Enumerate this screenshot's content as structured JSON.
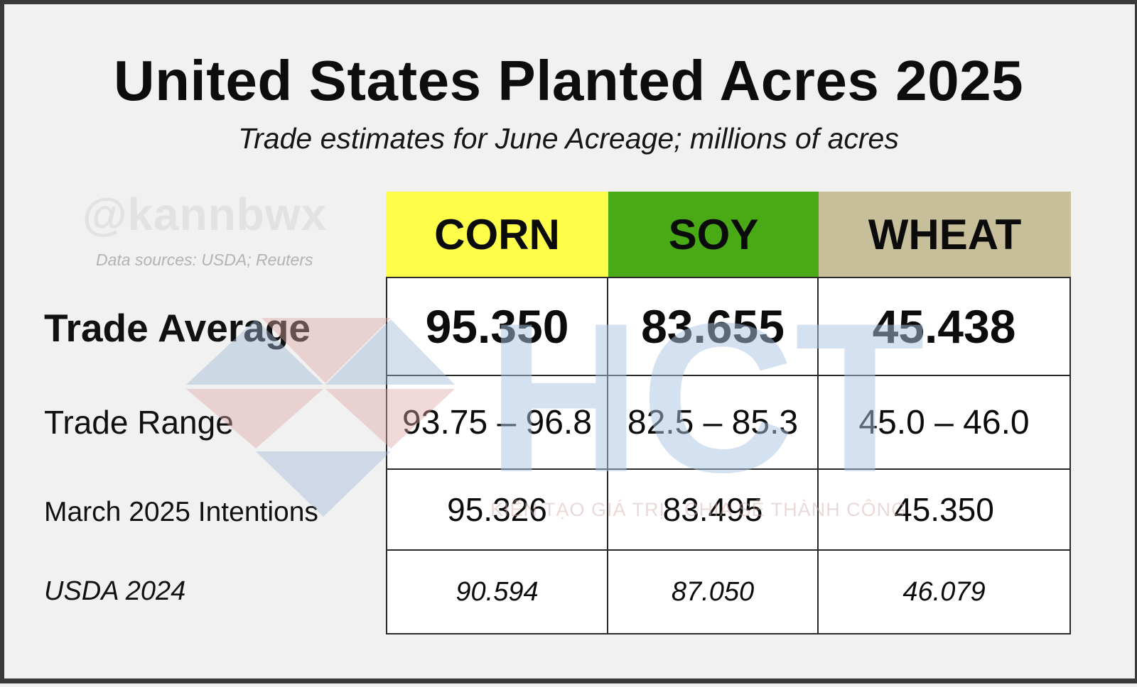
{
  "title": "United States Planted Acres 2025",
  "subtitle": "Trade estimates for June Acreage; millions of acres",
  "credit": {
    "handle": "@kannbwx",
    "sources": "Data sources: USDA; Reuters"
  },
  "watermark": {
    "brand": "HCT",
    "tagline": "KIẾN TẠO GIÁ TRỊ · CHIA SẺ THÀNH CÔNG"
  },
  "colors": {
    "corn": "#fdfd4a",
    "soy": "#4aaa16",
    "wheat": "#c6bf9a"
  },
  "chart_data": {
    "type": "table",
    "columns": [
      "CORN",
      "SOY",
      "WHEAT"
    ],
    "rows": [
      {
        "label": "Trade Average",
        "values": [
          "95.350",
          "83.655",
          "45.438"
        ]
      },
      {
        "label": "Trade Range",
        "values": [
          "93.75 – 96.8",
          "82.5 – 85.3",
          "45.0 – 46.0"
        ]
      },
      {
        "label": "March 2025 Intentions",
        "values": [
          "95.326",
          "83.495",
          "45.350"
        ]
      },
      {
        "label": "USDA 2024",
        "values": [
          "90.594",
          "87.050",
          "46.079"
        ]
      }
    ]
  }
}
